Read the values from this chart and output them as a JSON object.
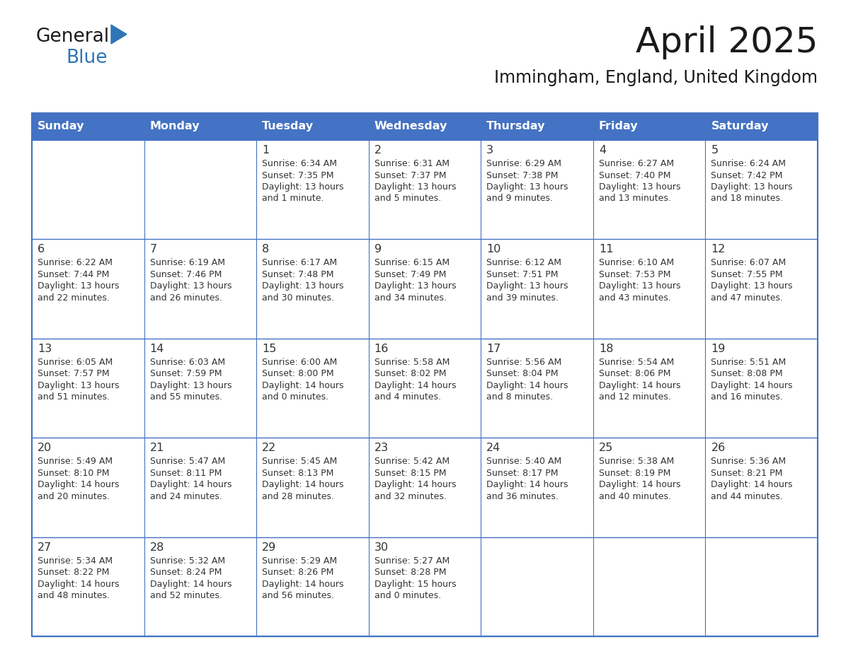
{
  "title": "April 2025",
  "subtitle": "Immingham, England, United Kingdom",
  "header_bg": "#4472C4",
  "header_text_color": "#FFFFFF",
  "cell_bg_white": "#FFFFFF",
  "cell_bg_gray": "#F0F0F0",
  "border_color": "#4472C4",
  "text_color": "#333333",
  "days_of_week": [
    "Sunday",
    "Monday",
    "Tuesday",
    "Wednesday",
    "Thursday",
    "Friday",
    "Saturday"
  ],
  "calendar_data": [
    [
      {
        "day": "",
        "sunrise": "",
        "sunset": "",
        "daylight_hours": "",
        "daylight_rest": ""
      },
      {
        "day": "",
        "sunrise": "",
        "sunset": "",
        "daylight_hours": "",
        "daylight_rest": ""
      },
      {
        "day": "1",
        "sunrise": "6:34 AM",
        "sunset": "7:35 PM",
        "daylight_hours": "Daylight: 13 hours",
        "daylight_rest": "and 1 minute."
      },
      {
        "day": "2",
        "sunrise": "6:31 AM",
        "sunset": "7:37 PM",
        "daylight_hours": "Daylight: 13 hours",
        "daylight_rest": "and 5 minutes."
      },
      {
        "day": "3",
        "sunrise": "6:29 AM",
        "sunset": "7:38 PM",
        "daylight_hours": "Daylight: 13 hours",
        "daylight_rest": "and 9 minutes."
      },
      {
        "day": "4",
        "sunrise": "6:27 AM",
        "sunset": "7:40 PM",
        "daylight_hours": "Daylight: 13 hours",
        "daylight_rest": "and 13 minutes."
      },
      {
        "day": "5",
        "sunrise": "6:24 AM",
        "sunset": "7:42 PM",
        "daylight_hours": "Daylight: 13 hours",
        "daylight_rest": "and 18 minutes."
      }
    ],
    [
      {
        "day": "6",
        "sunrise": "6:22 AM",
        "sunset": "7:44 PM",
        "daylight_hours": "Daylight: 13 hours",
        "daylight_rest": "and 22 minutes."
      },
      {
        "day": "7",
        "sunrise": "6:19 AM",
        "sunset": "7:46 PM",
        "daylight_hours": "Daylight: 13 hours",
        "daylight_rest": "and 26 minutes."
      },
      {
        "day": "8",
        "sunrise": "6:17 AM",
        "sunset": "7:48 PM",
        "daylight_hours": "Daylight: 13 hours",
        "daylight_rest": "and 30 minutes."
      },
      {
        "day": "9",
        "sunrise": "6:15 AM",
        "sunset": "7:49 PM",
        "daylight_hours": "Daylight: 13 hours",
        "daylight_rest": "and 34 minutes."
      },
      {
        "day": "10",
        "sunrise": "6:12 AM",
        "sunset": "7:51 PM",
        "daylight_hours": "Daylight: 13 hours",
        "daylight_rest": "and 39 minutes."
      },
      {
        "day": "11",
        "sunrise": "6:10 AM",
        "sunset": "7:53 PM",
        "daylight_hours": "Daylight: 13 hours",
        "daylight_rest": "and 43 minutes."
      },
      {
        "day": "12",
        "sunrise": "6:07 AM",
        "sunset": "7:55 PM",
        "daylight_hours": "Daylight: 13 hours",
        "daylight_rest": "and 47 minutes."
      }
    ],
    [
      {
        "day": "13",
        "sunrise": "6:05 AM",
        "sunset": "7:57 PM",
        "daylight_hours": "Daylight: 13 hours",
        "daylight_rest": "and 51 minutes."
      },
      {
        "day": "14",
        "sunrise": "6:03 AM",
        "sunset": "7:59 PM",
        "daylight_hours": "Daylight: 13 hours",
        "daylight_rest": "and 55 minutes."
      },
      {
        "day": "15",
        "sunrise": "6:00 AM",
        "sunset": "8:00 PM",
        "daylight_hours": "Daylight: 14 hours",
        "daylight_rest": "and 0 minutes."
      },
      {
        "day": "16",
        "sunrise": "5:58 AM",
        "sunset": "8:02 PM",
        "daylight_hours": "Daylight: 14 hours",
        "daylight_rest": "and 4 minutes."
      },
      {
        "day": "17",
        "sunrise": "5:56 AM",
        "sunset": "8:04 PM",
        "daylight_hours": "Daylight: 14 hours",
        "daylight_rest": "and 8 minutes."
      },
      {
        "day": "18",
        "sunrise": "5:54 AM",
        "sunset": "8:06 PM",
        "daylight_hours": "Daylight: 14 hours",
        "daylight_rest": "and 12 minutes."
      },
      {
        "day": "19",
        "sunrise": "5:51 AM",
        "sunset": "8:08 PM",
        "daylight_hours": "Daylight: 14 hours",
        "daylight_rest": "and 16 minutes."
      }
    ],
    [
      {
        "day": "20",
        "sunrise": "5:49 AM",
        "sunset": "8:10 PM",
        "daylight_hours": "Daylight: 14 hours",
        "daylight_rest": "and 20 minutes."
      },
      {
        "day": "21",
        "sunrise": "5:47 AM",
        "sunset": "8:11 PM",
        "daylight_hours": "Daylight: 14 hours",
        "daylight_rest": "and 24 minutes."
      },
      {
        "day": "22",
        "sunrise": "5:45 AM",
        "sunset": "8:13 PM",
        "daylight_hours": "Daylight: 14 hours",
        "daylight_rest": "and 28 minutes."
      },
      {
        "day": "23",
        "sunrise": "5:42 AM",
        "sunset": "8:15 PM",
        "daylight_hours": "Daylight: 14 hours",
        "daylight_rest": "and 32 minutes."
      },
      {
        "day": "24",
        "sunrise": "5:40 AM",
        "sunset": "8:17 PM",
        "daylight_hours": "Daylight: 14 hours",
        "daylight_rest": "and 36 minutes."
      },
      {
        "day": "25",
        "sunrise": "5:38 AM",
        "sunset": "8:19 PM",
        "daylight_hours": "Daylight: 14 hours",
        "daylight_rest": "and 40 minutes."
      },
      {
        "day": "26",
        "sunrise": "5:36 AM",
        "sunset": "8:21 PM",
        "daylight_hours": "Daylight: 14 hours",
        "daylight_rest": "and 44 minutes."
      }
    ],
    [
      {
        "day": "27",
        "sunrise": "5:34 AM",
        "sunset": "8:22 PM",
        "daylight_hours": "Daylight: 14 hours",
        "daylight_rest": "and 48 minutes."
      },
      {
        "day": "28",
        "sunrise": "5:32 AM",
        "sunset": "8:24 PM",
        "daylight_hours": "Daylight: 14 hours",
        "daylight_rest": "and 52 minutes."
      },
      {
        "day": "29",
        "sunrise": "5:29 AM",
        "sunset": "8:26 PM",
        "daylight_hours": "Daylight: 14 hours",
        "daylight_rest": "and 56 minutes."
      },
      {
        "day": "30",
        "sunrise": "5:27 AM",
        "sunset": "8:28 PM",
        "daylight_hours": "Daylight: 15 hours",
        "daylight_rest": "and 0 minutes."
      },
      {
        "day": "",
        "sunrise": "",
        "sunset": "",
        "daylight_hours": "",
        "daylight_rest": ""
      },
      {
        "day": "",
        "sunrise": "",
        "sunset": "",
        "daylight_hours": "",
        "daylight_rest": ""
      },
      {
        "day": "",
        "sunrise": "",
        "sunset": "",
        "daylight_hours": "",
        "daylight_rest": ""
      }
    ]
  ],
  "logo_text1": "General",
  "logo_text2": "Blue",
  "logo_text1_color": "#1a1a1a",
  "logo_text2_color": "#2E75B6",
  "logo_triangle_color": "#2E75B6"
}
